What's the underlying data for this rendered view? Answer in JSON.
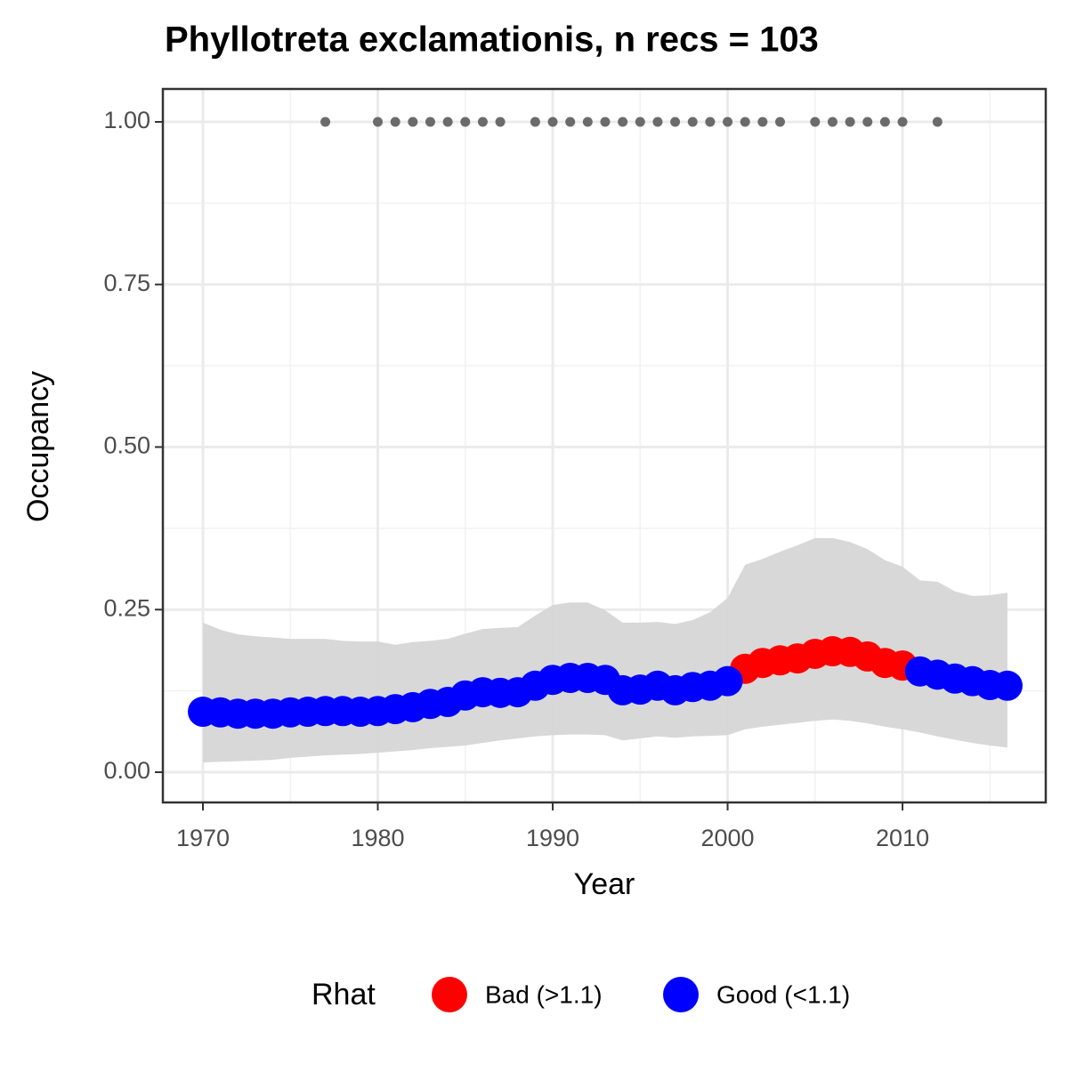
{
  "chart_data": {
    "type": "line",
    "title": "Phyllotreta exclamationis, n recs = 103",
    "x_label": "Year",
    "y_label": "Occupancy",
    "legend_title": "Rhat",
    "legend_position": "bottom",
    "grid": true,
    "x": [
      1970,
      1971,
      1972,
      1973,
      1974,
      1975,
      1976,
      1977,
      1978,
      1979,
      1980,
      1981,
      1982,
      1983,
      1984,
      1985,
      1986,
      1987,
      1988,
      1989,
      1990,
      1991,
      1992,
      1993,
      1994,
      1995,
      1996,
      1997,
      1998,
      1999,
      2000,
      2001,
      2002,
      2003,
      2004,
      2005,
      2006,
      2007,
      2008,
      2009,
      2010,
      2011,
      2012,
      2013,
      2014,
      2015,
      2016
    ],
    "series": [
      {
        "name": "Bad (>1.1)",
        "color": "#ff0000",
        "values": [
          null,
          null,
          null,
          null,
          null,
          null,
          null,
          null,
          null,
          null,
          null,
          null,
          null,
          null,
          null,
          null,
          null,
          null,
          null,
          null,
          null,
          null,
          null,
          null,
          null,
          null,
          null,
          null,
          null,
          null,
          null,
          0.159,
          0.168,
          0.172,
          0.175,
          0.182,
          0.186,
          0.185,
          0.178,
          0.168,
          0.164,
          null,
          null,
          null,
          null,
          null,
          null
        ]
      },
      {
        "name": "Good (<1.1)",
        "color": "#0000ff",
        "values": [
          0.093,
          0.092,
          0.09,
          0.09,
          0.09,
          0.092,
          0.093,
          0.094,
          0.094,
          0.093,
          0.094,
          0.097,
          0.1,
          0.105,
          0.108,
          0.118,
          0.123,
          0.122,
          0.123,
          0.133,
          0.142,
          0.145,
          0.145,
          0.142,
          0.126,
          0.127,
          0.133,
          0.126,
          0.131,
          0.133,
          0.14,
          null,
          null,
          null,
          null,
          null,
          null,
          null,
          null,
          null,
          null,
          0.155,
          0.15,
          0.144,
          0.14,
          0.134,
          0.133
        ]
      }
    ],
    "ribbon": {
      "color": "#d6d6d6",
      "lower": [
        0.015,
        0.016,
        0.017,
        0.018,
        0.019,
        0.022,
        0.024,
        0.026,
        0.027,
        0.028,
        0.03,
        0.032,
        0.034,
        0.037,
        0.039,
        0.041,
        0.045,
        0.049,
        0.052,
        0.055,
        0.057,
        0.058,
        0.058,
        0.057,
        0.049,
        0.052,
        0.055,
        0.053,
        0.055,
        0.056,
        0.057,
        0.066,
        0.07,
        0.073,
        0.076,
        0.079,
        0.081,
        0.079,
        0.075,
        0.07,
        0.066,
        0.061,
        0.055,
        0.05,
        0.045,
        0.041,
        0.038
      ],
      "upper": [
        0.23,
        0.219,
        0.212,
        0.209,
        0.207,
        0.205,
        0.205,
        0.205,
        0.202,
        0.201,
        0.201,
        0.196,
        0.2,
        0.202,
        0.205,
        0.213,
        0.22,
        0.222,
        0.223,
        0.241,
        0.257,
        0.261,
        0.261,
        0.249,
        0.23,
        0.23,
        0.231,
        0.228,
        0.234,
        0.246,
        0.268,
        0.319,
        0.328,
        0.339,
        0.349,
        0.36,
        0.36,
        0.354,
        0.343,
        0.326,
        0.316,
        0.295,
        0.293,
        0.278,
        0.271,
        0.272,
        0.276
      ]
    },
    "records": {
      "color": "#6b6b6b",
      "x": [
        1977,
        1980,
        1981,
        1982,
        1983,
        1984,
        1985,
        1986,
        1987,
        1989,
        1990,
        1991,
        1992,
        1993,
        1994,
        1995,
        1996,
        1997,
        1998,
        1999,
        2000,
        2001,
        2002,
        2003,
        2005,
        2006,
        2007,
        2008,
        2009,
        2010,
        2012
      ],
      "y": [
        1,
        1,
        1,
        1,
        1,
        1,
        1,
        1,
        1,
        1,
        1,
        1,
        1,
        1,
        1,
        1,
        1,
        1,
        1,
        1,
        1,
        1,
        1,
        1,
        1,
        1,
        1,
        1,
        1,
        1,
        1
      ]
    },
    "xlim": [
      1967.71,
      2018.19
    ],
    "ylim": [
      -0.0465,
      1.0506
    ],
    "xticks": [
      1970,
      1980,
      1990,
      2000,
      2010
    ],
    "yticks": [
      {
        "value": 0,
        "label": "0.00"
      },
      {
        "value": 0.25,
        "label": "0.25"
      },
      {
        "value": 0.5,
        "label": "0.50"
      },
      {
        "value": 0.75,
        "label": "0.75"
      },
      {
        "value": 1,
        "label": "1.00"
      }
    ],
    "xminor": [
      1975,
      1985,
      1995,
      2005,
      2015
    ],
    "yminor": [
      0.125,
      0.375,
      0.625,
      0.875
    ]
  }
}
